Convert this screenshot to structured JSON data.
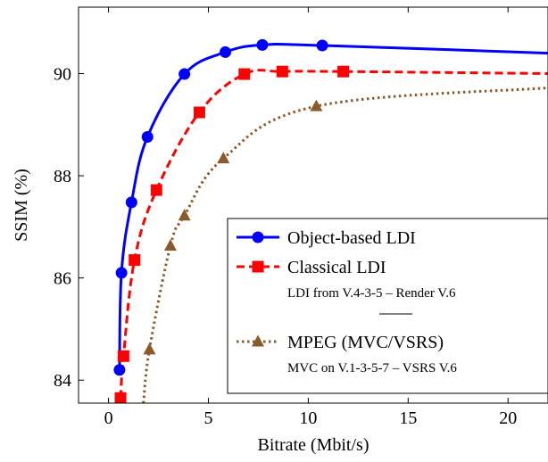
{
  "chart_data": {
    "type": "line",
    "title": "",
    "xlabel": "Bitrate (Mbit/s)",
    "ylabel": "SSIM (%)",
    "xlim": [
      -1.5,
      22
    ],
    "ylim": [
      83.55,
      91.3
    ],
    "xticks": [
      0,
      5,
      10,
      15,
      20
    ],
    "yticks": [
      84,
      86,
      88,
      90
    ],
    "grid": false,
    "legend_position": "bottom-right",
    "series": [
      {
        "name": "Object-based LDI",
        "color": "#0000ff",
        "line_style": "solid",
        "marker": "circle",
        "x": [
          0.55,
          0.65,
          1.15,
          1.95,
          3.8,
          5.85,
          7.7,
          10.7
        ],
        "y": [
          84.2,
          86.1,
          87.48,
          88.76,
          89.99,
          90.42,
          90.56,
          90.55
        ],
        "curve_end": [
          22,
          90.4
        ],
        "note": "Object-based LDI"
      },
      {
        "name": "Classical LDI",
        "color": "#ff0000",
        "line_style": "dashed",
        "marker": "square",
        "x": [
          0.6,
          0.75,
          1.3,
          2.4,
          4.55,
          6.8,
          8.7,
          11.75
        ],
        "y": [
          83.65,
          84.47,
          86.35,
          87.72,
          89.24,
          89.99,
          90.04,
          90.04
        ],
        "curve_end": [
          22,
          90.0
        ],
        "note": "LDI from V.4-3-5 – Render V.6"
      },
      {
        "name": "MPEG (MVC/VSRS)",
        "color": "#8b5a2b",
        "line_style": "dotted",
        "marker": "triangle",
        "x": [
          2.05,
          3.1,
          3.8,
          5.75,
          10.4
        ],
        "y": [
          84.6,
          86.63,
          87.22,
          88.34,
          89.36
        ],
        "curve_start": [
          1.75,
          83.55
        ],
        "curve_end": [
          22,
          89.72
        ],
        "note": "MVC on V.1-3-5-7 – VSRS V.6"
      }
    ]
  }
}
